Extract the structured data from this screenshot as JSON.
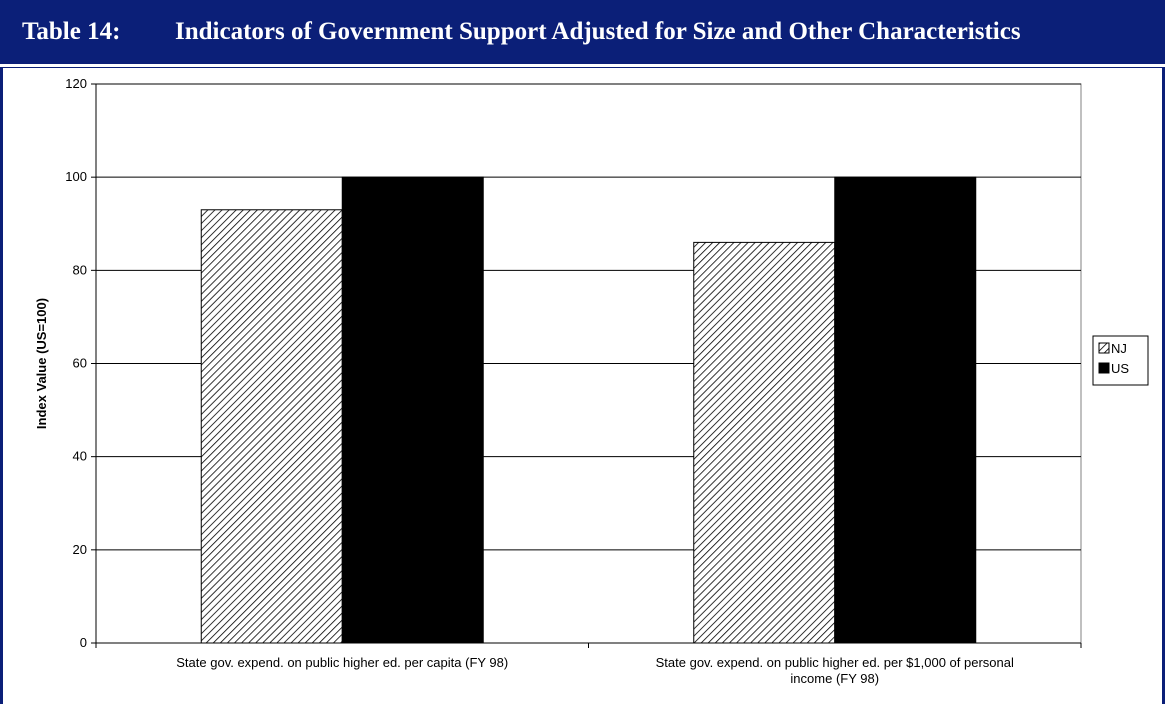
{
  "header": {
    "table_number": "Table 14:",
    "title": "Indicators of Government Support Adjusted for Size and Other Characteristics"
  },
  "colors": {
    "header_bg": "#0b1f78",
    "us_fill": "#000000",
    "nj_pattern": "diagonal-hatch"
  },
  "chart_data": {
    "type": "bar",
    "title": "",
    "xlabel": "",
    "ylabel": "Index Value (US=100)",
    "ylim": [
      0,
      120
    ],
    "yticks": [
      0,
      20,
      40,
      60,
      80,
      100,
      120
    ],
    "grid": true,
    "legend_position": "right",
    "categories": [
      [
        "State gov. expend. on public higher ed. per capita (FY 98)"
      ],
      [
        "State gov. expend. on public higher ed. per $1,000 of personal",
        "income (FY 98)"
      ]
    ],
    "series": [
      {
        "name": "NJ",
        "values": [
          93,
          86
        ]
      },
      {
        "name": "US",
        "values": [
          100,
          100
        ]
      }
    ]
  }
}
